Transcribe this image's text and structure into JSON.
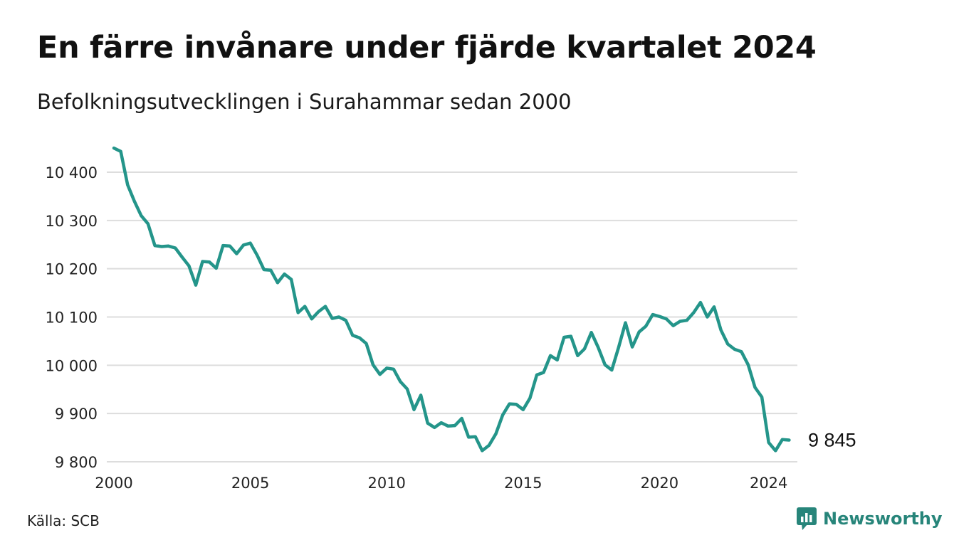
{
  "header": {
    "title": "En färre invånare under fjärde kvartalet 2024",
    "subtitle": "Befolkningsutvecklingen i Surahammar sedan 2000"
  },
  "footer": {
    "source": "Källa: SCB",
    "brand": "Newsworthy"
  },
  "colors": {
    "line": "#24958a",
    "grid": "#dddddd",
    "brand": "#27857a"
  },
  "chart_data": {
    "type": "line",
    "title": "En färre invånare under fjärde kvartalet 2024",
    "subtitle": "Befolkningsutvecklingen i Surahammar sedan 2000",
    "xlabel": "",
    "ylabel": "",
    "x_ticks": [
      2000,
      2005,
      2010,
      2015,
      2020,
      2024
    ],
    "y_ticks": [
      9800,
      9900,
      10000,
      10100,
      10200,
      10300,
      10400
    ],
    "y_tick_labels": [
      "9 800",
      "9 900",
      "10 000",
      "10 100",
      "10 200",
      "10 300",
      "10 400"
    ],
    "ylim": [
      9800,
      10460
    ],
    "grid": true,
    "end_label": "9 845",
    "series": [
      {
        "x": [
          2000.0,
          2000.25,
          2000.5,
          2000.75,
          2001.0,
          2001.25,
          2001.5,
          2001.75,
          2002.0,
          2002.25,
          2002.5,
          2002.75,
          2003.0,
          2003.25,
          2003.5,
          2003.75,
          2004.0,
          2004.25,
          2004.5,
          2004.75,
          2005.0,
          2005.25,
          2005.5,
          2005.75,
          2006.0,
          2006.25,
          2006.5,
          2006.75,
          2007.0,
          2007.25,
          2007.5,
          2007.75,
          2008.0,
          2008.25,
          2008.5,
          2008.75,
          2009.0,
          2009.25,
          2009.5,
          2009.75,
          2010.0,
          2010.25,
          2010.5,
          2010.75,
          2011.0,
          2011.25,
          2011.5,
          2011.75,
          2012.0,
          2012.25,
          2012.5,
          2012.75,
          2013.0,
          2013.25,
          2013.5,
          2013.75,
          2014.0,
          2014.25,
          2014.5,
          2014.75,
          2015.0,
          2015.25,
          2015.5,
          2015.75,
          2016.0,
          2016.25,
          2016.5,
          2016.75,
          2017.0,
          2017.25,
          2017.5,
          2017.75,
          2018.0,
          2018.25,
          2018.5,
          2018.75,
          2019.0,
          2019.25,
          2019.5,
          2019.75,
          2020.0,
          2020.25,
          2020.5,
          2020.75,
          2021.0,
          2021.25,
          2021.5,
          2021.75,
          2022.0,
          2022.25,
          2022.5,
          2022.75,
          2023.0,
          2023.25,
          2023.5,
          2023.75,
          2024.0,
          2024.25,
          2024.5,
          2024.75
        ],
        "values": [
          10450,
          10443,
          10374,
          10340,
          10310,
          10293,
          10248,
          10246,
          10247,
          10243,
          10224,
          10206,
          10166,
          10215,
          10214,
          10201,
          10248,
          10247,
          10231,
          10249,
          10253,
          10228,
          10198,
          10197,
          10171,
          10189,
          10178,
          10109,
          10122,
          10096,
          10111,
          10122,
          10097,
          10100,
          10093,
          10062,
          10057,
          10045,
          10001,
          9981,
          9994,
          9992,
          9966,
          9951,
          9908,
          9938,
          9880,
          9871,
          9881,
          9874,
          9875,
          9890,
          9851,
          9852,
          9823,
          9834,
          9858,
          9897,
          9920,
          9919,
          9908,
          9932,
          9980,
          9985,
          10020,
          10011,
          10058,
          10060,
          10020,
          10034,
          10068,
          10037,
          10001,
          9990,
          10037,
          10088,
          10038,
          10069,
          10081,
          10105,
          10101,
          10096,
          10082,
          10091,
          10093,
          10109,
          10130,
          10100,
          10121,
          10073,
          10044,
          10033,
          10028,
          10001,
          9954,
          9934,
          9840,
          9823,
          9846,
          9845
        ]
      }
    ]
  }
}
